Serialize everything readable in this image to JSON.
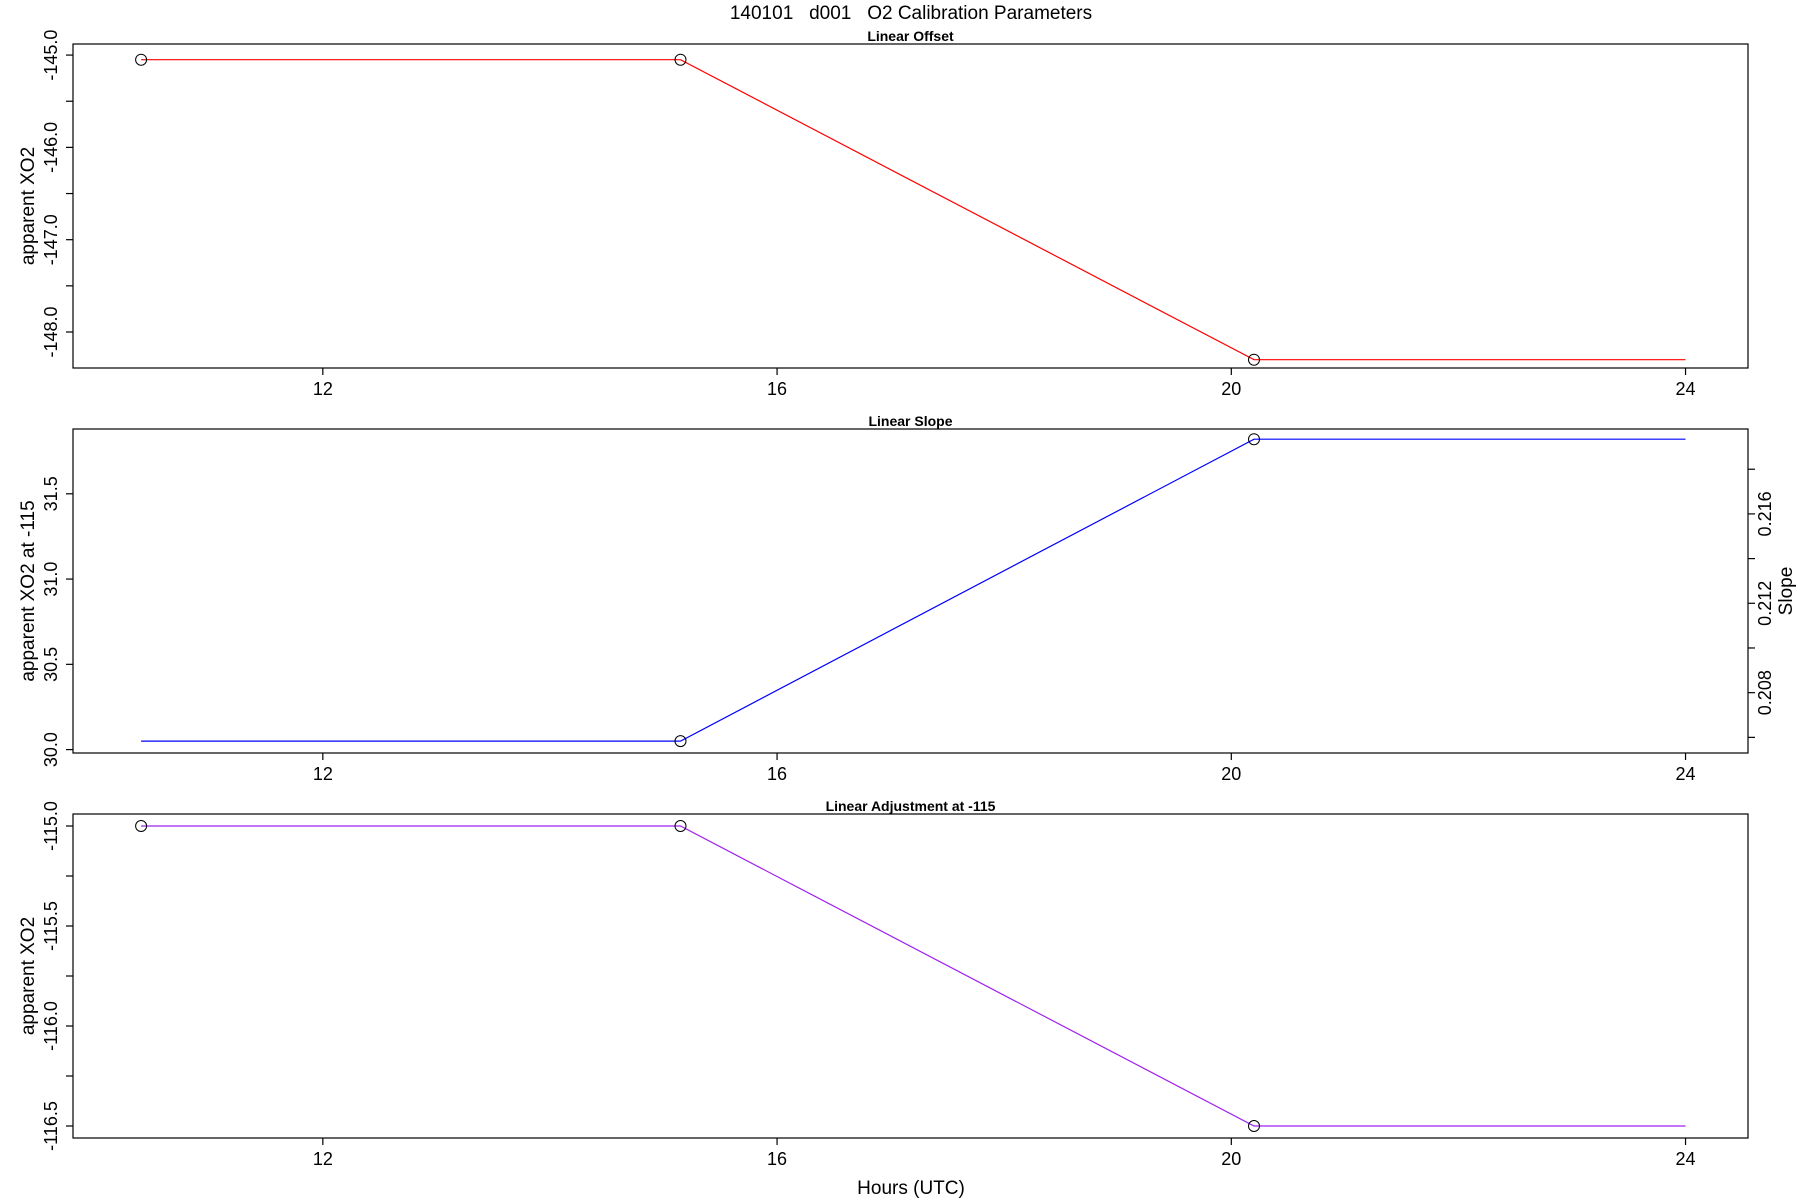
{
  "figure": {
    "title": "140101   d001   O2 Calibration Parameters",
    "xlabel": "Hours (UTC)"
  },
  "colors": {
    "offset": "#ff0000",
    "slope": "#0000ff",
    "adjustment": "#a020f0",
    "points": "#000000"
  },
  "chart_data": [
    {
      "type": "line",
      "title": "Linear Offset",
      "xlabel": "",
      "ylabel": "apparent XO2",
      "xlim": [
        9.8,
        24.55
      ],
      "ylim": [
        -148.39,
        -144.88
      ],
      "x_ticks": [
        12,
        16,
        20,
        24
      ],
      "y_ticks": [
        -145.0,
        -146.0,
        -147.0,
        -148.0
      ],
      "y_tick_labels": [
        "-145.0",
        "-146.0",
        "-147.0",
        "-148.0"
      ],
      "y_minor_ticks": [
        -145.5,
        -146.5,
        -147.5
      ],
      "grid": false,
      "series": [
        {
          "x": [
            10.4,
            15.15,
            20.2,
            24.0
          ],
          "y": [
            -145.05,
            -145.05,
            -148.3,
            -148.3
          ],
          "markers": [
            true,
            true,
            true,
            false
          ]
        }
      ]
    },
    {
      "type": "line",
      "title": "Linear Slope",
      "xlabel": "",
      "ylabel": "apparent XO2 at -115",
      "y2label": "Slope",
      "xlim": [
        9.8,
        24.55
      ],
      "ylim": [
        29.98,
        31.88
      ],
      "y2lim": [
        0.2053,
        0.2198
      ],
      "x_ticks": [
        12,
        16,
        20,
        24
      ],
      "y_ticks": [
        30.0,
        30.5,
        31.0,
        31.5
      ],
      "y_tick_labels": [
        "30.0",
        "30.5",
        "31.0",
        "31.5"
      ],
      "y2_ticks": [
        0.208,
        0.212,
        0.216
      ],
      "y2_tick_labels": [
        "0.208",
        "0.212",
        "0.216"
      ],
      "y2_minor_ticks": [
        0.206,
        0.21,
        0.214,
        0.218
      ],
      "grid": false,
      "series": [
        {
          "x": [
            10.4,
            15.15,
            20.2,
            24.0
          ],
          "y": [
            30.05,
            30.05,
            31.82,
            31.82
          ],
          "markers": [
            false,
            true,
            true,
            false
          ]
        }
      ]
    },
    {
      "type": "line",
      "title": "Linear Adjustment at -115",
      "xlabel": "",
      "ylabel": "apparent XO2",
      "xlim": [
        9.8,
        24.55
      ],
      "ylim": [
        -116.56,
        -114.94
      ],
      "x_ticks": [
        12,
        16,
        20,
        24
      ],
      "y_ticks": [
        -115.0,
        -115.5,
        -116.0,
        -116.5
      ],
      "y_tick_labels": [
        "-115.0",
        "-115.5",
        "-116.0",
        "-116.5"
      ],
      "y_minor_ticks": [
        -115.25,
        -115.75,
        -116.25
      ],
      "grid": false,
      "series": [
        {
          "x": [
            10.4,
            15.15,
            20.2,
            24.0
          ],
          "y": [
            -115.0,
            -115.0,
            -116.5,
            -116.5
          ],
          "markers": [
            true,
            true,
            true,
            false
          ]
        }
      ]
    }
  ]
}
